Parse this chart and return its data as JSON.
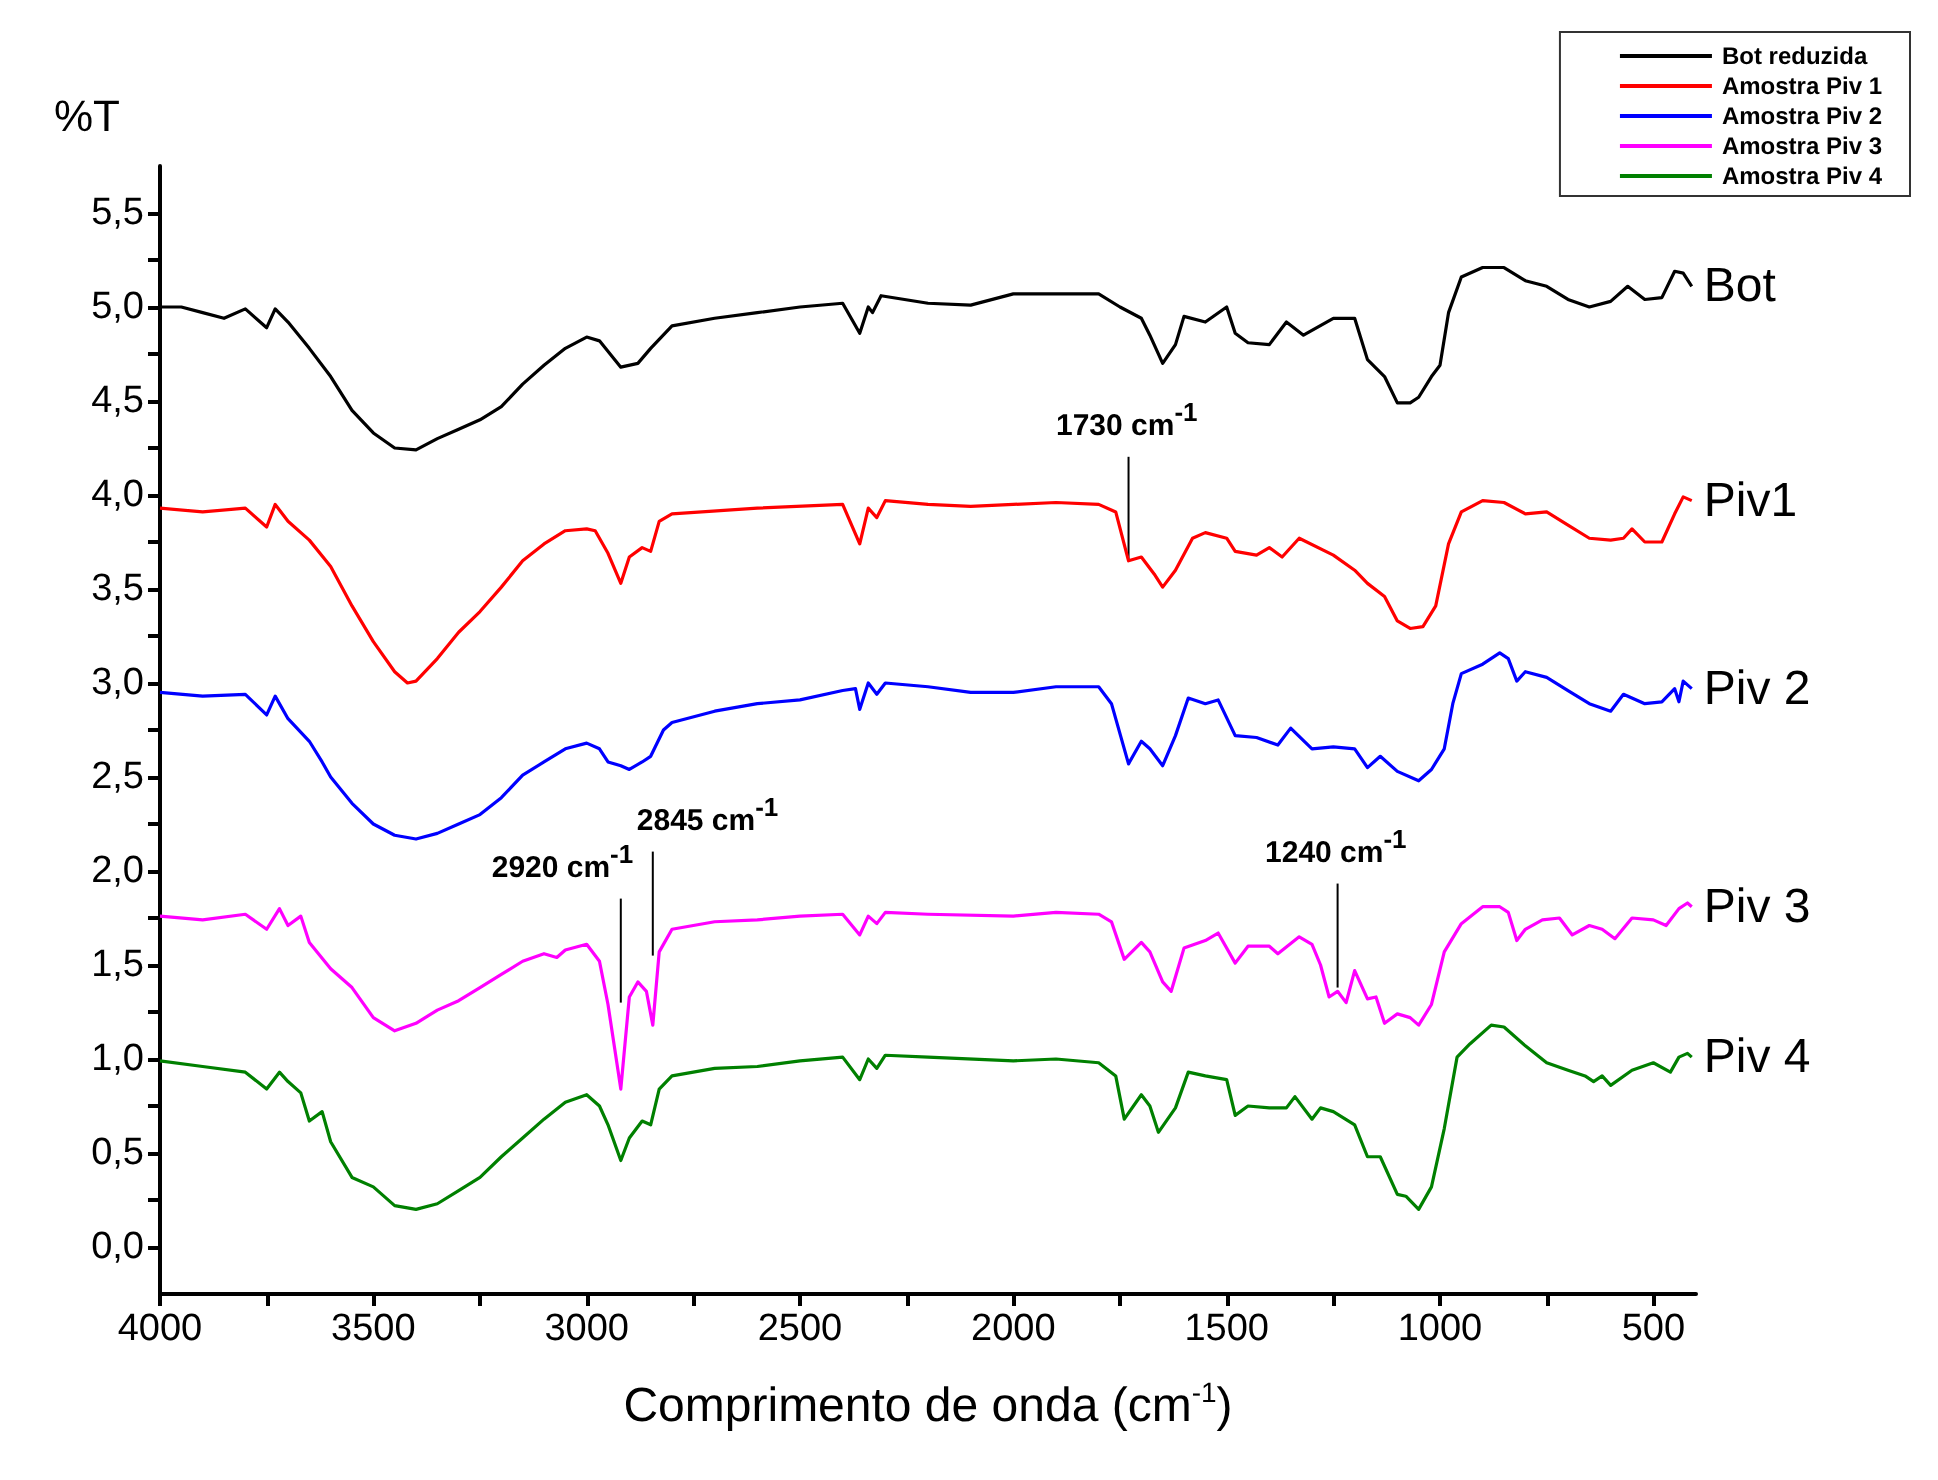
{
  "chart_data": {
    "type": "line",
    "xlabel": "Comprimento de onda (cm$^{-1}$)",
    "ylabel": "%T",
    "xlim": [
      4000,
      400
    ],
    "ylim": [
      -0.25,
      5.75
    ],
    "xticks": [
      4000,
      {
        "value": 3750,
        "label": null
      },
      3500,
      {
        "value": 3250,
        "label": null
      },
      3000,
      {
        "value": 2750,
        "label": null
      },
      2500,
      {
        "value": 2250,
        "label": null
      },
      2000,
      {
        "value": 1750,
        "label": null
      },
      1500,
      {
        "value": 1250,
        "label": null
      },
      1000,
      {
        "value": 750,
        "label": null
      },
      500
    ],
    "yticks": [
      {
        "value": 0,
        "label": "0,0"
      },
      {
        "value": 0.25,
        "label": null
      },
      {
        "value": 0.5,
        "label": "0,5"
      },
      {
        "value": 0.75,
        "label": null
      },
      {
        "value": 1,
        "label": "1,0"
      },
      {
        "value": 1.25,
        "label": null
      },
      {
        "value": 1.5,
        "label": "1,5"
      },
      {
        "value": 1.75,
        "label": null
      },
      {
        "value": 2,
        "label": "2,0"
      },
      {
        "value": 2.25,
        "label": null
      },
      {
        "value": 2.5,
        "label": "2,5"
      },
      {
        "value": 2.75,
        "label": null
      },
      {
        "value": 3,
        "label": "3,0"
      },
      {
        "value": 3.25,
        "label": null
      },
      {
        "value": 3.5,
        "label": "3,5"
      },
      {
        "value": 3.75,
        "label": null
      },
      {
        "value": 4,
        "label": "4,0"
      },
      {
        "value": 4.25,
        "label": null
      },
      {
        "value": 4.5,
        "label": "4,5"
      },
      {
        "value": 4.75,
        "label": null
      },
      {
        "value": 5,
        "label": "5,0"
      },
      {
        "value": 5.25,
        "label": null
      },
      {
        "value": 5.5,
        "label": "5,5"
      }
    ],
    "grid": false,
    "legend": "top right",
    "marker": "none",
    "line_style": "solid",
    "series": [
      {
        "name": "Bot reduzida",
        "color": "#000000",
        "x": [
          4000,
          3950,
          3900,
          3850,
          3800,
          3750,
          3730,
          3700,
          3650,
          3600,
          3550,
          3500,
          3450,
          3400,
          3350,
          3300,
          3250,
          3200,
          3150,
          3100,
          3050,
          3000,
          2970,
          2920,
          2880,
          2850,
          2800,
          2700,
          2600,
          2500,
          2400,
          2360,
          2340,
          2330,
          2310,
          2200,
          2100,
          2000,
          1900,
          1800,
          1750,
          1700,
          1680,
          1650,
          1620,
          1600,
          1550,
          1500,
          1480,
          1450,
          1400,
          1360,
          1320,
          1250,
          1200,
          1170,
          1130,
          1100,
          1070,
          1050,
          1020,
          1000,
          980,
          950,
          900,
          850,
          800,
          750,
          700,
          650,
          600,
          560,
          520,
          480,
          450,
          430,
          410
        ],
        "values": [
          5.0,
          5.0,
          4.97,
          4.94,
          4.99,
          4.89,
          4.99,
          4.92,
          4.78,
          4.63,
          4.45,
          4.33,
          4.25,
          4.24,
          4.3,
          4.35,
          4.4,
          4.47,
          4.59,
          4.69,
          4.78,
          4.84,
          4.82,
          4.68,
          4.7,
          4.78,
          4.9,
          4.94,
          4.97,
          5.0,
          5.02,
          4.86,
          5.0,
          4.97,
          5.06,
          5.02,
          5.01,
          5.07,
          5.07,
          5.07,
          5.0,
          4.94,
          4.85,
          4.7,
          4.8,
          4.95,
          4.92,
          5.0,
          4.86,
          4.81,
          4.8,
          4.92,
          4.85,
          4.94,
          4.94,
          4.72,
          4.63,
          4.49,
          4.49,
          4.52,
          4.63,
          4.69,
          4.97,
          5.16,
          5.21,
          5.21,
          5.14,
          5.11,
          5.04,
          5.0,
          5.03,
          5.11,
          5.04,
          5.05,
          5.19,
          5.18,
          5.11
        ]
      },
      {
        "name": "Amostra Piv 1",
        "color": "#ff0000",
        "x": [
          4000,
          3900,
          3800,
          3750,
          3730,
          3700,
          3650,
          3600,
          3550,
          3500,
          3450,
          3420,
          3400,
          3350,
          3300,
          3250,
          3200,
          3150,
          3100,
          3050,
          3000,
          2980,
          2950,
          2920,
          2900,
          2870,
          2850,
          2830,
          2800,
          2600,
          2400,
          2360,
          2340,
          2320,
          2300,
          2200,
          2100,
          2000,
          1900,
          1800,
          1760,
          1730,
          1700,
          1670,
          1650,
          1620,
          1580,
          1550,
          1500,
          1480,
          1430,
          1400,
          1370,
          1330,
          1250,
          1200,
          1170,
          1130,
          1100,
          1070,
          1040,
          1010,
          980,
          950,
          900,
          850,
          800,
          750,
          700,
          650,
          600,
          570,
          550,
          520,
          480,
          450,
          430,
          410
        ],
        "values": [
          3.93,
          3.91,
          3.93,
          3.83,
          3.95,
          3.86,
          3.76,
          3.62,
          3.41,
          3.22,
          3.06,
          3.0,
          3.01,
          3.13,
          3.27,
          3.38,
          3.51,
          3.65,
          3.74,
          3.81,
          3.82,
          3.81,
          3.69,
          3.53,
          3.67,
          3.72,
          3.7,
          3.86,
          3.9,
          3.93,
          3.95,
          3.74,
          3.93,
          3.88,
          3.97,
          3.95,
          3.94,
          3.95,
          3.96,
          3.95,
          3.91,
          3.65,
          3.67,
          3.58,
          3.51,
          3.6,
          3.77,
          3.8,
          3.77,
          3.7,
          3.68,
          3.72,
          3.67,
          3.77,
          3.68,
          3.6,
          3.53,
          3.46,
          3.33,
          3.29,
          3.3,
          3.41,
          3.74,
          3.91,
          3.97,
          3.96,
          3.9,
          3.91,
          3.84,
          3.77,
          3.76,
          3.77,
          3.82,
          3.75,
          3.75,
          3.9,
          3.99,
          3.97
        ]
      },
      {
        "name": "Amostra Piv 2",
        "color": "#0000ff",
        "x": [
          4000,
          3900,
          3800,
          3750,
          3730,
          3700,
          3650,
          3620,
          3600,
          3550,
          3500,
          3450,
          3400,
          3350,
          3300,
          3250,
          3200,
          3150,
          3100,
          3050,
          3000,
          2970,
          2950,
          2920,
          2900,
          2870,
          2850,
          2820,
          2800,
          2700,
          2600,
          2500,
          2400,
          2370,
          2360,
          2340,
          2320,
          2300,
          2200,
          2100,
          2000,
          1900,
          1800,
          1770,
          1730,
          1700,
          1680,
          1650,
          1620,
          1590,
          1550,
          1520,
          1480,
          1430,
          1380,
          1350,
          1300,
          1250,
          1200,
          1170,
          1140,
          1100,
          1050,
          1020,
          990,
          970,
          950,
          900,
          860,
          840,
          820,
          800,
          750,
          700,
          650,
          600,
          570,
          520,
          480,
          450,
          440,
          430,
          410
        ],
        "values": [
          2.95,
          2.93,
          2.94,
          2.83,
          2.93,
          2.81,
          2.69,
          2.58,
          2.5,
          2.36,
          2.25,
          2.19,
          2.17,
          2.2,
          2.25,
          2.3,
          2.39,
          2.51,
          2.58,
          2.65,
          2.68,
          2.65,
          2.58,
          2.56,
          2.54,
          2.58,
          2.61,
          2.75,
          2.79,
          2.85,
          2.89,
          2.91,
          2.96,
          2.97,
          2.86,
          3.0,
          2.94,
          3.0,
          2.98,
          2.95,
          2.95,
          2.98,
          2.98,
          2.89,
          2.57,
          2.69,
          2.65,
          2.56,
          2.72,
          2.92,
          2.89,
          2.91,
          2.72,
          2.71,
          2.67,
          2.76,
          2.65,
          2.66,
          2.65,
          2.55,
          2.61,
          2.53,
          2.48,
          2.54,
          2.65,
          2.89,
          3.05,
          3.1,
          3.16,
          3.13,
          3.01,
          3.06,
          3.03,
          2.96,
          2.89,
          2.85,
          2.94,
          2.89,
          2.9,
          2.97,
          2.9,
          3.01,
          2.97
        ]
      },
      {
        "name": "Amostra Piv 3",
        "color": "#ff00ff",
        "x": [
          4000,
          3900,
          3800,
          3750,
          3720,
          3700,
          3670,
          3650,
          3600,
          3550,
          3500,
          3450,
          3400,
          3350,
          3300,
          3250,
          3200,
          3150,
          3100,
          3070,
          3050,
          3000,
          2970,
          2950,
          2920,
          2900,
          2880,
          2860,
          2845,
          2830,
          2800,
          2700,
          2600,
          2500,
          2400,
          2360,
          2340,
          2320,
          2300,
          2200,
          2000,
          1900,
          1800,
          1770,
          1740,
          1700,
          1680,
          1650,
          1630,
          1600,
          1550,
          1520,
          1480,
          1450,
          1400,
          1380,
          1330,
          1300,
          1280,
          1260,
          1240,
          1220,
          1200,
          1170,
          1150,
          1130,
          1100,
          1070,
          1050,
          1020,
          990,
          950,
          900,
          860,
          840,
          820,
          800,
          760,
          720,
          690,
          650,
          620,
          590,
          550,
          500,
          470,
          440,
          420,
          410
        ],
        "values": [
          1.76,
          1.74,
          1.77,
          1.69,
          1.8,
          1.71,
          1.76,
          1.62,
          1.48,
          1.38,
          1.22,
          1.15,
          1.19,
          1.26,
          1.31,
          1.38,
          1.45,
          1.52,
          1.56,
          1.54,
          1.58,
          1.61,
          1.52,
          1.29,
          0.84,
          1.33,
          1.41,
          1.36,
          1.18,
          1.57,
          1.69,
          1.73,
          1.74,
          1.76,
          1.77,
          1.66,
          1.76,
          1.72,
          1.78,
          1.77,
          1.76,
          1.78,
          1.77,
          1.73,
          1.53,
          1.62,
          1.57,
          1.41,
          1.36,
          1.59,
          1.63,
          1.67,
          1.51,
          1.6,
          1.6,
          1.56,
          1.65,
          1.61,
          1.5,
          1.33,
          1.36,
          1.3,
          1.47,
          1.32,
          1.33,
          1.19,
          1.24,
          1.22,
          1.18,
          1.29,
          1.57,
          1.72,
          1.81,
          1.81,
          1.78,
          1.63,
          1.69,
          1.74,
          1.75,
          1.66,
          1.71,
          1.69,
          1.64,
          1.75,
          1.74,
          1.71,
          1.8,
          1.83,
          1.81
        ]
      },
      {
        "name": "Amostra Piv 4",
        "color": "#008000",
        "x": [
          4000,
          3900,
          3800,
          3750,
          3720,
          3700,
          3670,
          3650,
          3620,
          3600,
          3550,
          3500,
          3450,
          3400,
          3350,
          3300,
          3250,
          3200,
          3150,
          3100,
          3050,
          3000,
          2970,
          2950,
          2920,
          2900,
          2870,
          2850,
          2830,
          2800,
          2700,
          2600,
          2500,
          2400,
          2360,
          2340,
          2320,
          2300,
          2200,
          2000,
          1900,
          1800,
          1760,
          1740,
          1700,
          1680,
          1660,
          1620,
          1590,
          1550,
          1500,
          1480,
          1450,
          1400,
          1360,
          1340,
          1300,
          1280,
          1250,
          1200,
          1170,
          1140,
          1100,
          1080,
          1050,
          1020,
          990,
          960,
          930,
          880,
          850,
          800,
          750,
          700,
          660,
          640,
          620,
          600,
          550,
          500,
          460,
          440,
          420,
          410
        ],
        "values": [
          0.99,
          0.96,
          0.93,
          0.84,
          0.93,
          0.88,
          0.82,
          0.67,
          0.72,
          0.56,
          0.37,
          0.32,
          0.22,
          0.2,
          0.23,
          0.3,
          0.37,
          0.48,
          0.58,
          0.68,
          0.77,
          0.81,
          0.75,
          0.65,
          0.46,
          0.58,
          0.67,
          0.65,
          0.84,
          0.91,
          0.95,
          0.96,
          0.99,
          1.01,
          0.89,
          1.0,
          0.95,
          1.02,
          1.01,
          0.99,
          1.0,
          0.98,
          0.91,
          0.68,
          0.81,
          0.75,
          0.61,
          0.74,
          0.93,
          0.91,
          0.89,
          0.7,
          0.75,
          0.74,
          0.74,
          0.8,
          0.68,
          0.74,
          0.72,
          0.65,
          0.48,
          0.48,
          0.28,
          0.27,
          0.2,
          0.32,
          0.63,
          1.01,
          1.08,
          1.18,
          1.17,
          1.07,
          0.98,
          0.94,
          0.91,
          0.88,
          0.91,
          0.86,
          0.94,
          0.98,
          0.93,
          1.01,
          1.03,
          1.01
        ]
      }
    ],
    "annotations": [
      {
        "text": "Bot",
        "x": 410,
        "y": 5.11
      },
      {
        "text": "Piv1",
        "x": 410,
        "y": 3.97
      },
      {
        "text": "Piv 2",
        "x": 410,
        "y": 2.97
      },
      {
        "text": "Piv 3",
        "x": 410,
        "y": 1.81
      },
      {
        "text": "Piv 4",
        "x": 410,
        "y": 1.01
      },
      {
        "text": "1730 cm$^{-1}$",
        "x": 1730,
        "y": 3.65
      },
      {
        "text": "2920 cm$^{-1}$",
        "x": 2920,
        "y": 1.3
      },
      {
        "text": "2845 cm$^{-1}$",
        "x": 2845,
        "y": 1.55
      },
      {
        "text": "1240 cm$^{-1}$",
        "x": 1240,
        "y": 1.38
      }
    ]
  }
}
